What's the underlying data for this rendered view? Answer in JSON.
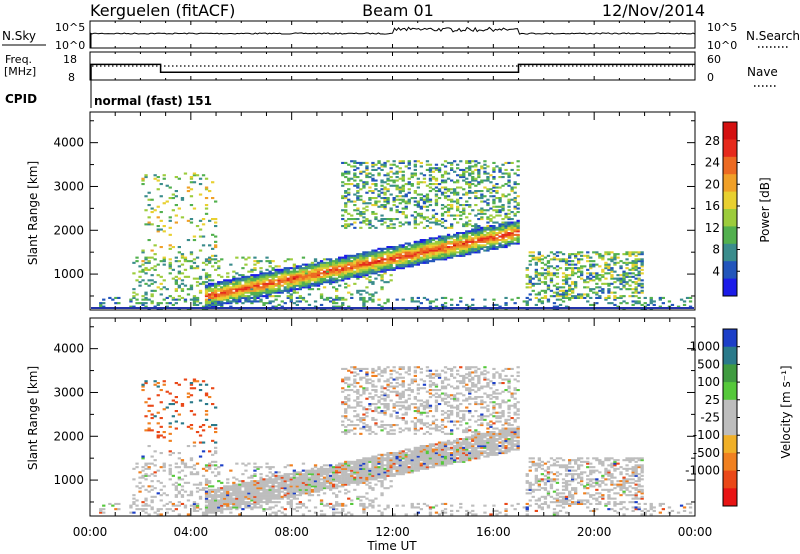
{
  "header": {
    "station": "Kerguelen (fitACF)",
    "beam": "Beam 01",
    "date": "12/Nov/2014"
  },
  "strips": {
    "nsky": {
      "label": "N.Sky",
      "left_ticks": [
        "10^5",
        "10^0"
      ],
      "right_ticks": [
        "10^5",
        "10^0"
      ],
      "right_label": "N.Search"
    },
    "freq": {
      "label_line1": "Freq.",
      "label_line2": "[MHz]",
      "left_ticks": [
        "18",
        "8"
      ],
      "right_ticks": [
        "60",
        "0"
      ],
      "right_label": "Nave"
    },
    "cpid": {
      "label": "CPID",
      "value": "normal (fast) 151"
    }
  },
  "time_axis": {
    "xlabel": "Time UT",
    "ticks": [
      "00:00",
      "04:00",
      "08:00",
      "12:00",
      "16:00",
      "20:00",
      "00:00"
    ]
  },
  "chart_data": [
    {
      "type": "heatmap",
      "name": "power",
      "ylabel": "Slant Range [km]",
      "yticks": [
        "1000",
        "2000",
        "3000",
        "4000"
      ],
      "ylim": [
        180,
        4700
      ],
      "xlim_hours": [
        0,
        24
      ],
      "colorbar": {
        "label": "Power [dB]",
        "ticks": [
          "4",
          "8",
          "12",
          "16",
          "20",
          "24",
          "28"
        ],
        "colors": [
          "#1c1ce8",
          "#2255bb",
          "#3a8c8c",
          "#52b04e",
          "#9ccc3c",
          "#e8d030",
          "#f0a028",
          "#ec6a22",
          "#e62a1c",
          "#d41010"
        ]
      },
      "features": [
        {
          "desc": "main band",
          "hours": [
            5,
            17
          ],
          "range_km": [
            500,
            1900
          ]
        },
        {
          "desc": "high-range scatter",
          "hours": [
            10,
            17
          ],
          "range_km": [
            2000,
            3600
          ]
        },
        {
          "desc": "late echoes",
          "hours": [
            17.3,
            22
          ],
          "range_km": [
            400,
            1500
          ]
        }
      ]
    },
    {
      "type": "heatmap",
      "name": "velocity",
      "ylabel": "Slant Range [km]",
      "yticks": [
        "1000",
        "2000",
        "3000",
        "4000"
      ],
      "ylim": [
        180,
        4700
      ],
      "xlim_hours": [
        0,
        24
      ],
      "colorbar": {
        "label": "Velocity [m s⁻¹]",
        "ticks": [
          "1000",
          "500",
          "100",
          "25",
          "-25",
          "-100",
          "-500",
          "-1000"
        ],
        "colors": [
          "#1c3fc8",
          "#2a7a8a",
          "#3f9b40",
          "#55c83a",
          "#bdbdbd",
          "#bdbdbd",
          "#f0b028",
          "#f08020",
          "#ea4818",
          "#e81414"
        ]
      }
    }
  ],
  "series": {
    "nsky_level": 0.72,
    "freq_mhz": [
      {
        "t": 0.2,
        "f": 14
      },
      {
        "t": 2.8,
        "f": 14
      },
      {
        "t": 2.8,
        "f": 11
      },
      {
        "t": 17,
        "f": 11
      },
      {
        "t": 17,
        "f": 14
      },
      {
        "t": 24,
        "f": 14
      }
    ]
  }
}
